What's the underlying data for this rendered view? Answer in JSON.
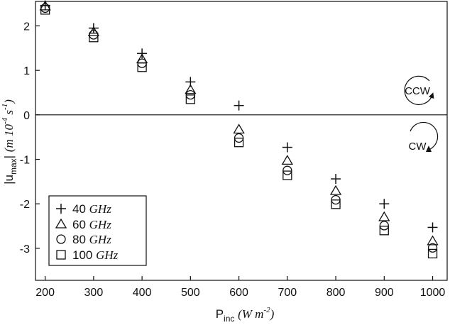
{
  "chart_data": {
    "type": "scatter",
    "xlabel": {
      "main": "P",
      "sub": "inc",
      "unit": "(W m",
      "unit_sup": "-2",
      "unit_close": ")"
    },
    "ylabel": {
      "main": "|u",
      "sub": "max",
      "after": "|",
      "unit": "(m 10",
      "unit_sup1": "-4",
      "unit_mid": " s",
      "unit_sup2": "-1",
      "unit_close": ")"
    },
    "x_ticks": [
      200,
      300,
      400,
      500,
      600,
      700,
      800,
      900,
      1000
    ],
    "y_ticks": [
      2,
      1,
      0,
      -1,
      -2,
      -3
    ],
    "xlim": [
      180,
      1030
    ],
    "ylim": [
      -3.72,
      2.55
    ],
    "zero_line": true,
    "series": [
      {
        "name": "40",
        "unit": "GHz",
        "marker": "plus",
        "x": [
          200,
          300,
          400,
          500,
          600,
          700,
          800,
          900,
          1000
        ],
        "y": [
          2.46,
          1.95,
          1.38,
          0.74,
          0.21,
          -0.73,
          -1.44,
          -2.0,
          -2.53
        ]
      },
      {
        "name": "60",
        "unit": "GHz",
        "marker": "triangle",
        "x": [
          200,
          300,
          400,
          500,
          600,
          700,
          800,
          900,
          1000
        ],
        "y": [
          2.44,
          1.86,
          1.25,
          0.56,
          -0.33,
          -1.03,
          -1.71,
          -2.3,
          -2.84
        ]
      },
      {
        "name": "80",
        "unit": "GHz",
        "marker": "circle",
        "x": [
          200,
          300,
          400,
          500,
          600,
          700,
          800,
          900,
          1000
        ],
        "y": [
          2.4,
          1.8,
          1.16,
          0.45,
          -0.52,
          -1.25,
          -1.91,
          -2.49,
          -2.99
        ]
      },
      {
        "name": "100",
        "unit": "GHz",
        "marker": "square",
        "x": [
          200,
          300,
          400,
          500,
          600,
          700,
          800,
          900,
          1000
        ],
        "y": [
          2.36,
          1.74,
          1.07,
          0.35,
          -0.62,
          -1.36,
          -2.01,
          -2.6,
          -3.12
        ]
      }
    ],
    "legend_position": "bottom-left",
    "annotations": [
      {
        "text": "CCW",
        "direction": "counter-clockwise",
        "region": "above-zero"
      },
      {
        "text": "CW",
        "direction": "clockwise",
        "region": "below-zero"
      }
    ]
  }
}
